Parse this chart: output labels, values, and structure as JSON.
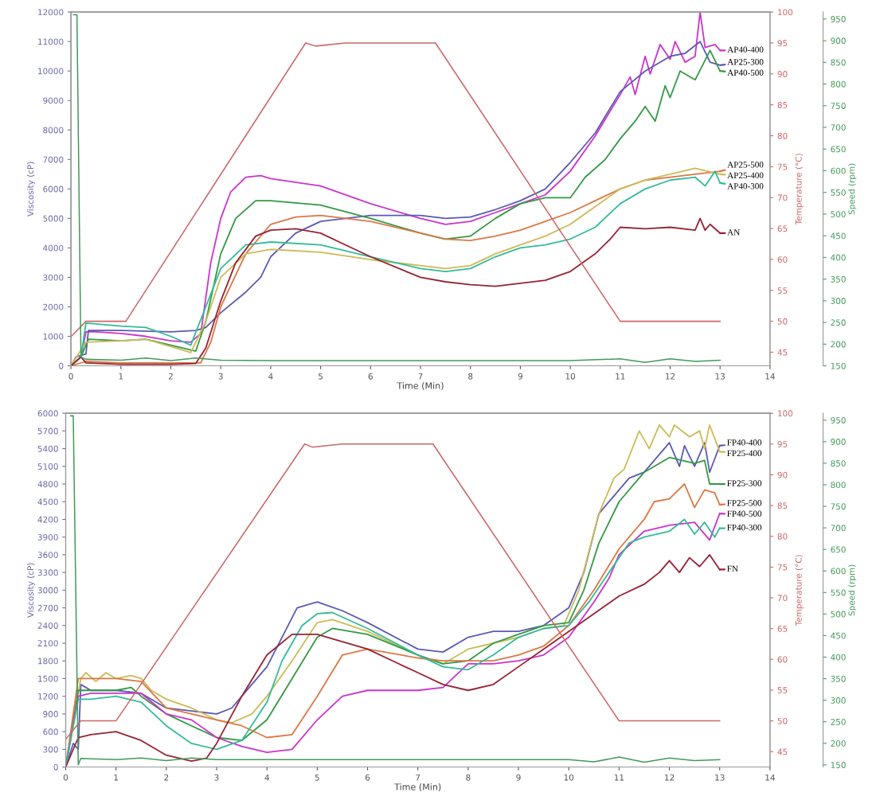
{
  "chart_data": [
    {
      "type": "line",
      "legend": "right",
      "xlabel": "Time (Min)",
      "ylabel": "Viscosity (cP)",
      "y2label": "Temperature (°C)",
      "y3label": "Speed (rpm)",
      "xlim": [
        0,
        14
      ],
      "xticks": [
        0,
        1,
        2,
        3,
        4,
        5,
        6,
        7,
        8,
        9,
        10,
        11,
        12,
        13,
        14
      ],
      "ylim": [
        0,
        12000
      ],
      "yticks": [
        0,
        1000,
        2000,
        3000,
        4000,
        5000,
        6000,
        7000,
        8000,
        9000,
        10000,
        11000,
        12000
      ],
      "y2lim": [
        42.8,
        100
      ],
      "y2ticks": [
        45,
        50,
        55,
        60,
        65,
        70,
        75,
        80,
        85,
        90,
        95,
        100
      ],
      "y3lim": [
        150,
        966
      ],
      "y3ticks": [
        150,
        200,
        250,
        300,
        350,
        400,
        450,
        500,
        550,
        600,
        650,
        700,
        750,
        800,
        850,
        900,
        950
      ],
      "series": [
        {
          "name": "AP40-400",
          "color": "#cc33cc",
          "x": [
            0,
            0.2,
            0.3,
            0.5,
            1,
            1.5,
            2,
            2.4,
            2.6,
            2.8,
            3.0,
            3.2,
            3.5,
            3.8,
            4,
            5,
            6,
            7,
            7.5,
            8,
            8.5,
            9,
            9.5,
            10,
            10.5,
            11,
            11.2,
            11.3,
            11.5,
            11.6,
            11.8,
            12,
            12.1,
            12.3,
            12.5,
            12.6,
            12.7,
            12.9,
            13
          ],
          "values": [
            0,
            300,
            1150,
            1150,
            1100,
            1000,
            850,
            800,
            1100,
            3500,
            5000,
            5900,
            6400,
            6450,
            6350,
            6100,
            5500,
            5000,
            4800,
            4900,
            5200,
            5500,
            5800,
            6600,
            7800,
            9200,
            9800,
            9200,
            10500,
            9900,
            10900,
            10400,
            11000,
            10300,
            10500,
            12000,
            10800,
            10900,
            10700
          ]
        },
        {
          "name": "AP25-300",
          "color": "#5a5ab4",
          "x": [
            0,
            0.1,
            0.3,
            0.35,
            1,
            2,
            2.5,
            2.7,
            3,
            3.5,
            3.8,
            4,
            4.5,
            5,
            6,
            7,
            7.5,
            8,
            8.5,
            9,
            9.5,
            10,
            10.5,
            11,
            11.5,
            12,
            12.3,
            12.6,
            12.8,
            13
          ],
          "values": [
            0,
            300,
            400,
            1200,
            1200,
            1150,
            1200,
            1300,
            1800,
            2500,
            3000,
            3700,
            4500,
            4900,
            5100,
            5100,
            5000,
            5050,
            5300,
            5600,
            6000,
            6900,
            7900,
            9300,
            10000,
            10500,
            10600,
            11000,
            10300,
            10200
          ]
        },
        {
          "name": "AP40-500",
          "color": "#339944",
          "x": [
            0,
            0.2,
            0.35,
            1,
            1.5,
            2,
            2.5,
            2.7,
            3,
            3.3,
            3.7,
            4,
            5,
            6,
            7,
            7.5,
            8,
            8.5,
            9,
            9.5,
            10,
            10.3,
            10.7,
            11,
            11.3,
            11.5,
            11.7,
            11.9,
            12,
            12.2,
            12.5,
            12.8,
            13
          ],
          "values": [
            0,
            300,
            900,
            850,
            900,
            700,
            500,
            1500,
            3800,
            5000,
            5600,
            5600,
            5450,
            5000,
            4500,
            4300,
            4400,
            5000,
            5500,
            5700,
            5700,
            6400,
            7000,
            7700,
            8300,
            8800,
            8300,
            9500,
            9100,
            10000,
            9700,
            10700,
            10000
          ]
        },
        {
          "name": "AP25-500",
          "color": "#dd7744",
          "x": [
            0,
            0.3,
            1,
            2,
            2.6,
            2.8,
            3,
            3.5,
            4,
            4.5,
            5,
            5.5,
            6,
            7,
            7.5,
            8,
            8.5,
            9,
            9.5,
            10,
            10.5,
            11,
            11.5,
            12,
            12.5,
            13
          ],
          "values": [
            0,
            150,
            100,
            100,
            100,
            800,
            2000,
            3800,
            4800,
            5050,
            5100,
            5000,
            4900,
            4500,
            4300,
            4250,
            4400,
            4600,
            4900,
            5200,
            5600,
            6000,
            6300,
            6400,
            6500,
            6600
          ]
        },
        {
          "name": "AP25-400",
          "color": "#ccbb55",
          "x": [
            0,
            0.3,
            1,
            1.5,
            2,
            2.4,
            2.7,
            3,
            3.5,
            4,
            5,
            6,
            7,
            7.5,
            8,
            8.5,
            9,
            9.5,
            10,
            10.5,
            11,
            11.5,
            12,
            12.5,
            13
          ],
          "values": [
            0,
            800,
            850,
            900,
            650,
            450,
            1500,
            3000,
            3800,
            3950,
            3850,
            3600,
            3400,
            3300,
            3400,
            3800,
            4100,
            4400,
            4800,
            5400,
            6000,
            6300,
            6500,
            6700,
            6500
          ]
        },
        {
          "name": "AP40-300",
          "color": "#33bb99",
          "x": [
            0,
            0.2,
            0.3,
            1,
            1.5,
            2,
            2.4,
            2.7,
            3,
            3.5,
            4,
            5,
            6,
            7,
            7.5,
            8,
            8.5,
            9,
            9.5,
            10,
            10.5,
            11,
            11.5,
            12,
            12.5,
            12.7,
            12.9,
            13
          ],
          "values": [
            0,
            300,
            1450,
            1350,
            1300,
            1000,
            700,
            2000,
            3300,
            4100,
            4200,
            4100,
            3700,
            3300,
            3200,
            3300,
            3700,
            4000,
            4100,
            4300,
            4700,
            5500,
            6000,
            6300,
            6400,
            6100,
            6600,
            6200
          ]
        },
        {
          "name": "AN",
          "color": "#992233",
          "x": [
            0,
            0.2,
            0.3,
            1,
            2,
            2.5,
            2.7,
            3,
            3.3,
            3.7,
            4,
            4.5,
            5,
            5.5,
            6,
            7,
            7.5,
            8,
            8.5,
            9,
            9.5,
            10,
            10.5,
            10.8,
            11,
            11.5,
            12,
            12.5,
            12.6,
            12.7,
            12.8,
            13
          ],
          "values": [
            0,
            300,
            100,
            50,
            50,
            80,
            600,
            2200,
            3500,
            4400,
            4600,
            4650,
            4500,
            4100,
            3700,
            3000,
            2850,
            2750,
            2700,
            2800,
            2900,
            3200,
            3800,
            4300,
            4700,
            4650,
            4700,
            4600,
            5000,
            4600,
            4800,
            4500
          ]
        },
        {
          "axis": "y2",
          "color": "#cc6666",
          "x": [
            0,
            0.3,
            1.1,
            4.7,
            4.9,
            5.5,
            7.3,
            11.0,
            13
          ],
          "values": [
            47.5,
            50,
            50,
            95,
            94.5,
            95,
            95,
            50,
            50
          ]
        },
        {
          "axis": "y3",
          "color": "#44995a",
          "x": [
            0.05,
            0.12,
            0.2,
            0.3,
            1,
            1.5,
            2,
            2.5,
            3,
            4,
            6,
            8,
            10,
            11,
            11.5,
            12,
            12.5,
            13
          ],
          "values": [
            960,
            960,
            170,
            165,
            163,
            168,
            162,
            168,
            163,
            162,
            162,
            162,
            162,
            166,
            158,
            166,
            160,
            163
          ]
        }
      ]
    },
    {
      "type": "line",
      "legend": "right",
      "xlabel": "Time (Min)",
      "ylabel": "Viscosity (cP)",
      "y2label": "Temperature (°C)",
      "y3label": "Speed (rpm)",
      "xlim": [
        0,
        14
      ],
      "xticks": [
        0,
        1,
        2,
        3,
        4,
        5,
        6,
        7,
        8,
        9,
        10,
        11,
        12,
        13,
        14
      ],
      "ylim": [
        0,
        6000
      ],
      "yticks": [
        0,
        300,
        600,
        900,
        1200,
        1500,
        1800,
        2100,
        2400,
        2700,
        3000,
        3300,
        3600,
        3900,
        4200,
        4500,
        4800,
        5100,
        5400,
        5700,
        6000
      ],
      "y2lim": [
        42.5,
        100
      ],
      "y2ticks": [
        45,
        50,
        55,
        60,
        65,
        70,
        75,
        80,
        85,
        90,
        95,
        100
      ],
      "y3lim": [
        145,
        966
      ],
      "y3ticks": [
        150,
        200,
        250,
        300,
        350,
        400,
        450,
        500,
        550,
        600,
        650,
        700,
        750,
        800,
        850,
        900,
        950
      ],
      "series": [
        {
          "name": "FP40-400",
          "color": "#5a5ab4",
          "x": [
            0,
            0.15,
            0.25,
            0.3,
            0.5,
            1,
            1.5,
            2,
            2.5,
            3,
            3.3,
            3.5,
            4,
            4.3,
            4.6,
            5,
            5.5,
            6,
            7,
            7.5,
            8,
            8.5,
            9,
            9.5,
            10,
            10.3,
            10.6,
            10.9,
            11.2,
            11.5,
            12,
            12.2,
            12.3,
            12.5,
            12.7,
            12.8,
            13
          ],
          "values": [
            0,
            400,
            300,
            1400,
            1300,
            1300,
            1250,
            1000,
            950,
            900,
            1000,
            1200,
            1700,
            2200,
            2700,
            2800,
            2650,
            2450,
            2000,
            1950,
            2200,
            2300,
            2300,
            2400,
            2700,
            3300,
            4300,
            4600,
            4900,
            5000,
            5500,
            5100,
            5450,
            5100,
            5500,
            5000,
            5450
          ]
        },
        {
          "name": "FP25-400",
          "color": "#ccbb55",
          "x": [
            0,
            0.2,
            0.3,
            0.4,
            0.6,
            0.8,
            1,
            1.3,
            1.5,
            1.7,
            2,
            2.5,
            3,
            3.3,
            3.7,
            4,
            4.5,
            5,
            5.3,
            6,
            7,
            7.5,
            8,
            8.5,
            9,
            9.5,
            9.9,
            10.2,
            10.6,
            10.9,
            11.1,
            11.4,
            11.6,
            11.8,
            12,
            12.1,
            12.4,
            12.6,
            12.7,
            12.8,
            13
          ],
          "values": [
            0,
            1000,
            1500,
            1600,
            1450,
            1600,
            1500,
            1550,
            1500,
            1300,
            1150,
            1000,
            800,
            750,
            900,
            1200,
            1800,
            2450,
            2500,
            2300,
            1900,
            1750,
            2000,
            2100,
            2200,
            2350,
            2400,
            3000,
            4300,
            4900,
            5050,
            5700,
            5400,
            5800,
            5600,
            5800,
            5600,
            5700,
            5400,
            5800,
            5350
          ]
        },
        {
          "name": "FP25-300",
          "color": "#339944",
          "x": [
            0,
            0.25,
            0.5,
            1,
            1.3,
            1.5,
            2,
            2.5,
            3,
            3.5,
            4,
            4.5,
            5,
            5.3,
            6,
            7,
            7.5,
            8,
            8.5,
            9,
            9.5,
            10,
            10.3,
            10.6,
            11,
            11.5,
            12,
            12.5,
            12.7,
            12.8,
            13
          ],
          "values": [
            0,
            1300,
            1300,
            1300,
            1350,
            1200,
            900,
            700,
            500,
            450,
            800,
            1500,
            2200,
            2350,
            2250,
            1900,
            1750,
            1800,
            2100,
            2250,
            2400,
            2450,
            3000,
            3800,
            4500,
            5000,
            5250,
            5150,
            5200,
            4800,
            4800
          ]
        },
        {
          "name": "FP25-500",
          "color": "#dd7744",
          "x": [
            0,
            0.25,
            0.5,
            1,
            1.5,
            2,
            2.5,
            3,
            3.5,
            4,
            4.5,
            5,
            5.5,
            6,
            7,
            7.5,
            8,
            8.5,
            9,
            9.5,
            10,
            10.5,
            11,
            11.5,
            11.7,
            12,
            12.3,
            12.5,
            12.7,
            12.9,
            13
          ],
          "values": [
            0,
            1500,
            1500,
            1500,
            1450,
            1000,
            900,
            800,
            700,
            500,
            550,
            1200,
            1900,
            2000,
            1850,
            1800,
            1800,
            1800,
            1900,
            2050,
            2400,
            3000,
            3700,
            4200,
            4500,
            4550,
            4800,
            4400,
            4700,
            4650,
            4450
          ]
        },
        {
          "name": "FP40-500",
          "color": "#cc33cc",
          "x": [
            0,
            0.25,
            0.5,
            1,
            1.5,
            2,
            2.5,
            3,
            3.5,
            4,
            4.5,
            5,
            5.5,
            6,
            7,
            7.5,
            8,
            8.5,
            9,
            9.5,
            10,
            10.5,
            10.8,
            11,
            11.5,
            12,
            12.5,
            12.8,
            13
          ],
          "values": [
            0,
            1200,
            1250,
            1250,
            1250,
            900,
            800,
            500,
            350,
            250,
            300,
            800,
            1200,
            1300,
            1300,
            1350,
            1750,
            1750,
            1800,
            1900,
            2200,
            2800,
            3200,
            3600,
            4000,
            4100,
            4150,
            3850,
            4300
          ]
        },
        {
          "name": "FP40-300",
          "color": "#33bb99",
          "x": [
            0,
            0.25,
            0.5,
            1,
            1.5,
            2,
            2.5,
            3,
            3.5,
            4,
            4.3,
            4.7,
            5,
            5.3,
            6,
            7,
            7.5,
            8,
            8.5,
            9,
            9.5,
            10,
            10.4,
            10.8,
            11.2,
            11.5,
            12,
            12.3,
            12.5,
            12.7,
            12.9,
            13
          ],
          "values": [
            0,
            1150,
            1150,
            1200,
            1100,
            700,
            400,
            300,
            450,
            1100,
            1800,
            2400,
            2600,
            2620,
            2350,
            1900,
            1700,
            1650,
            1900,
            2200,
            2350,
            2400,
            2800,
            3300,
            3800,
            3900,
            4000,
            4200,
            3950,
            4150,
            3900,
            4050
          ]
        },
        {
          "name": "FN",
          "color": "#992233",
          "x": [
            0,
            0.25,
            0.5,
            1,
            1.5,
            2,
            2.5,
            2.8,
            3,
            3.5,
            4,
            4.5,
            5,
            6,
            6.5,
            7,
            7.5,
            8,
            8.5,
            9,
            9.5,
            10,
            10.5,
            11,
            11.5,
            11.8,
            12,
            12.2,
            12.4,
            12.6,
            12.8,
            13
          ],
          "values": [
            0,
            500,
            550,
            600,
            450,
            200,
            100,
            150,
            400,
            1200,
            1900,
            2250,
            2250,
            2000,
            1800,
            1600,
            1400,
            1300,
            1400,
            1700,
            2000,
            2300,
            2600,
            2900,
            3100,
            3300,
            3500,
            3300,
            3550,
            3400,
            3600,
            3350
          ]
        },
        {
          "axis": "y2",
          "color": "#cc6666",
          "x": [
            0,
            0.3,
            1.0,
            4.75,
            4.9,
            5.5,
            7.3,
            11.0,
            13
          ],
          "values": [
            47,
            50,
            50,
            95,
            94.5,
            95,
            95,
            50,
            50
          ]
        },
        {
          "axis": "y3",
          "color": "#44995a",
          "x": [
            0.1,
            0.15,
            0.25,
            0.3,
            1,
            1.5,
            2,
            2.5,
            3,
            4,
            6,
            8,
            10,
            10.5,
            11,
            11.5,
            12,
            12.5,
            13
          ],
          "values": [
            960,
            960,
            150,
            165,
            162,
            166,
            160,
            166,
            162,
            162,
            162,
            162,
            162,
            157,
            168,
            156,
            166,
            160,
            162
          ]
        }
      ]
    }
  ]
}
